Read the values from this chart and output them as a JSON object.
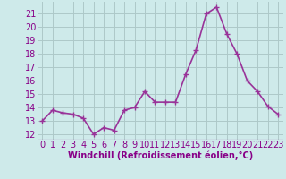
{
  "x": [
    0,
    1,
    2,
    3,
    4,
    5,
    6,
    7,
    8,
    9,
    10,
    11,
    12,
    13,
    14,
    15,
    16,
    17,
    18,
    19,
    20,
    21,
    22,
    23
  ],
  "y": [
    13,
    13.8,
    13.6,
    13.5,
    13.2,
    12,
    12.5,
    12.3,
    13.8,
    14.0,
    15.2,
    14.4,
    14.4,
    14.4,
    16.5,
    18.3,
    21.0,
    21.5,
    19.5,
    18.0,
    16.0,
    15.2,
    14.1,
    13.5
  ],
  "line_color": "#993399",
  "marker": "+",
  "marker_size": 4,
  "xlabel": "Windchill (Refroidissement éolien,°C)",
  "ylabel_ticks": [
    12,
    13,
    14,
    15,
    16,
    17,
    18,
    19,
    20,
    21
  ],
  "ylim": [
    11.6,
    21.9
  ],
  "xlim": [
    -0.5,
    23.5
  ],
  "background_color": "#ceeaea",
  "grid_color": "#adc8c8",
  "tick_label_color": "#880088",
  "xlabel_color": "#880088",
  "xlabel_fontsize": 7,
  "tick_fontsize": 7,
  "line_width": 1.2,
  "marker_edge_width": 1.0
}
